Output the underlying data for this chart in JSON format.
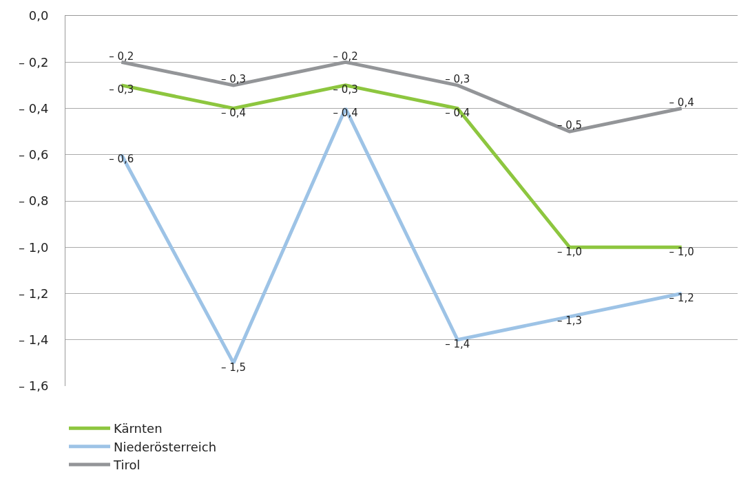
{
  "chart_data": {
    "type": "line",
    "categories": [
      null,
      null,
      null,
      null,
      null,
      null
    ],
    "series": [
      {
        "name": "Kärnten",
        "color": "#8dc63f",
        "values": [
          -0.3,
          -0.4,
          -0.3,
          -0.4,
          -1.0,
          -1.0
        ],
        "value_labels": [
          "– 0,3",
          "– 0,4",
          "– 0,3",
          "– 0,4",
          "– 1,0",
          "– 1,0"
        ]
      },
      {
        "name": "Niederösterreich",
        "color": "#9dc3e6",
        "values": [
          -0.6,
          -1.5,
          -0.4,
          -1.4,
          -1.3,
          -1.2
        ],
        "value_labels": [
          "– 0,6",
          "– 1,5",
          "– 0,4",
          "– 1,4",
          "– 1,3",
          "– 1,2"
        ]
      },
      {
        "name": "Tirol",
        "color": "#939598",
        "values": [
          -0.2,
          -0.3,
          -0.2,
          -0.3,
          -0.5,
          -0.4
        ],
        "value_labels": [
          "– 0,2",
          "– 0,3",
          "– 0,2",
          "– 0,3",
          "– 0,5",
          "– 0,4"
        ]
      }
    ],
    "ylim": [
      -1.6,
      0
    ],
    "yticks": [
      {
        "value": 0,
        "label": "0,0"
      },
      {
        "value": -0.2,
        "label": "– 0,2"
      },
      {
        "value": -0.4,
        "label": "– 0,4"
      },
      {
        "value": -0.6,
        "label": "– 0,6"
      },
      {
        "value": -0.8,
        "label": "– 0,8"
      },
      {
        "value": -1.0,
        "label": "– 1,0"
      },
      {
        "value": -1.2,
        "label": "– 1,2"
      },
      {
        "value": -1.4,
        "label": "– 1,4"
      },
      {
        "value": -1.6,
        "label": "– 1,6"
      }
    ],
    "grid": "y",
    "legend": "bottom left",
    "marker": "none",
    "line_style": "solid",
    "tick_labels": "y"
  }
}
